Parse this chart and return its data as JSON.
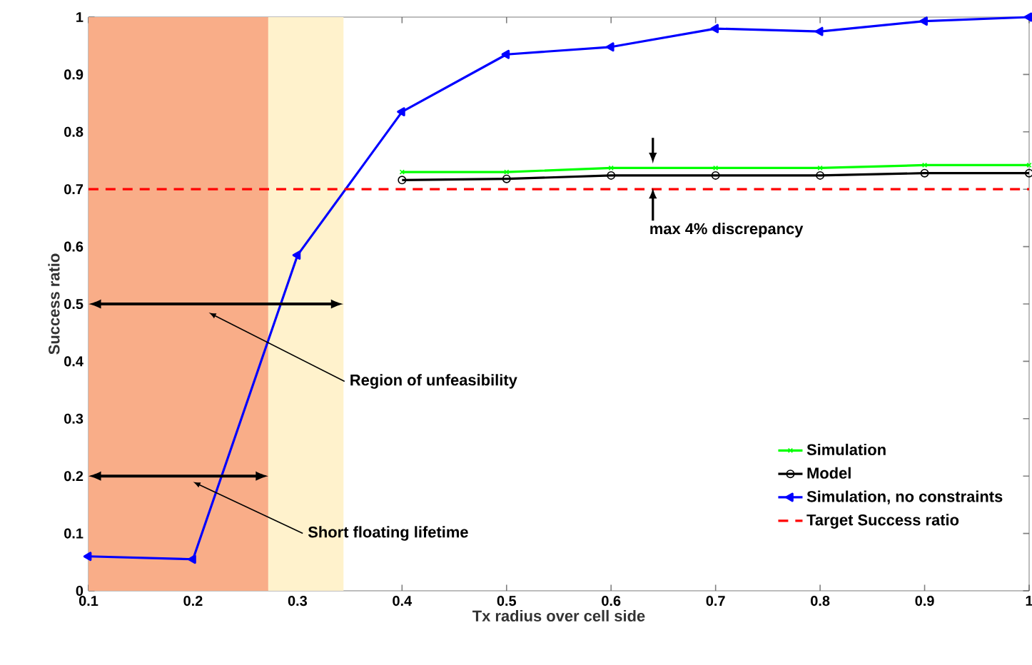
{
  "chart_data": {
    "type": "line",
    "xlabel": "Tx radius over cell side",
    "ylabel": "Success ratio",
    "xlim": [
      0.1,
      1
    ],
    "ylim": [
      0,
      1
    ],
    "xticks": [
      0.1,
      0.2,
      0.3,
      0.4,
      0.5,
      0.6,
      0.7,
      0.8,
      0.9,
      1
    ],
    "yticks": [
      0,
      0.1,
      0.2,
      0.3,
      0.4,
      0.5,
      0.6,
      0.7,
      0.8,
      0.9,
      1
    ],
    "legend": "bottom right",
    "grid": false,
    "series": [
      {
        "name": "Simulation",
        "color": "#00ff00",
        "marker": "cross",
        "x": [
          0.4,
          0.5,
          0.6,
          0.7,
          0.8,
          0.9,
          1
        ],
        "values": [
          0.73,
          0.73,
          0.737,
          0.737,
          0.737,
          0.742,
          0.742
        ]
      },
      {
        "name": "Model",
        "color": "#000000",
        "marker": "circle",
        "x": [
          0.4,
          0.5,
          0.6,
          0.7,
          0.8,
          0.9,
          1
        ],
        "values": [
          0.716,
          0.718,
          0.724,
          0.724,
          0.724,
          0.728,
          0.728
        ]
      },
      {
        "name": "Simulation, no constraints",
        "color": "#0000ff",
        "marker": "triangle",
        "x": [
          0.1,
          0.2,
          0.3,
          0.4,
          0.5,
          0.6,
          0.7,
          0.8,
          0.9,
          1
        ],
        "values": [
          0.06,
          0.055,
          0.585,
          0.835,
          0.935,
          0.948,
          0.98,
          0.975,
          0.993,
          1.0
        ]
      },
      {
        "name": "Target Success ratio",
        "color": "#ff0000",
        "marker": "none",
        "line_style": "dashed",
        "x": [
          0.1,
          1
        ],
        "values": [
          0.7,
          0.7
        ]
      }
    ],
    "bands": [
      {
        "axis": "x",
        "from": 0.1,
        "to": 0.272,
        "color": "#f9ad88"
      },
      {
        "axis": "x",
        "from": 0.272,
        "to": 0.344,
        "color": "#fff2cc"
      }
    ],
    "annotations": [
      "Region of unfeasibility",
      "Short floating lifetime",
      {
        "text": "max 4% discrepancy",
        "x": 0.64,
        "y": 0.7
      }
    ]
  }
}
